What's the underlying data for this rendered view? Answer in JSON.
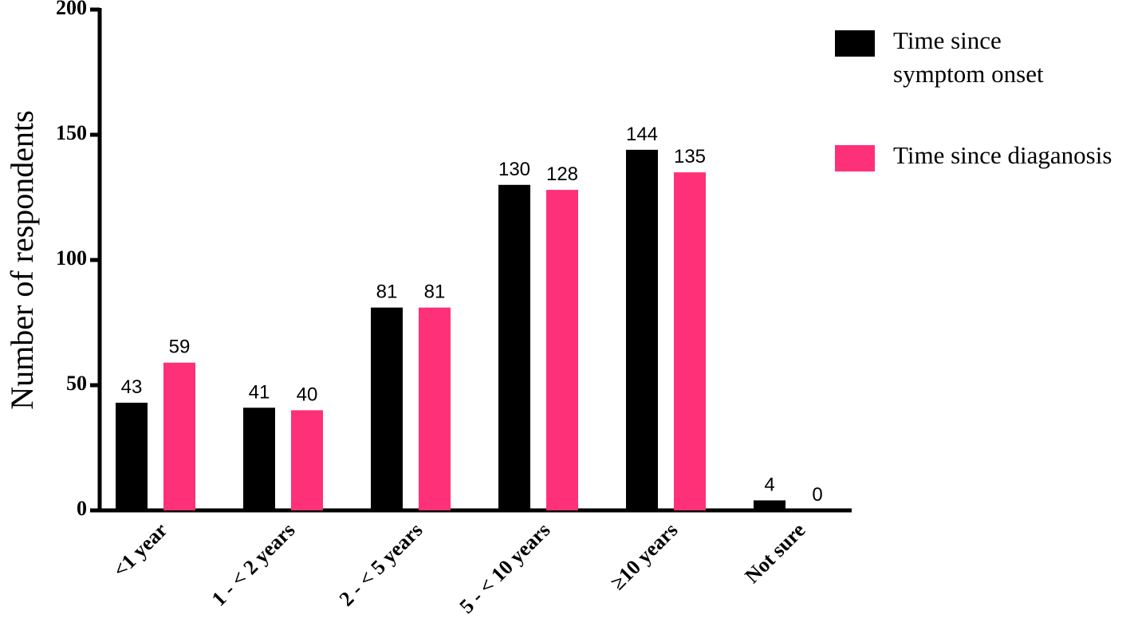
{
  "chart_data": {
    "type": "bar",
    "y_label": "Number of respondents",
    "categories": [
      "<1 year",
      "1 - < 2 years",
      "2 - < 5 years",
      "5 - < 10 years",
      "≥10 years",
      "Not sure"
    ],
    "series": [
      {
        "name": "Time since symptom onset",
        "color": "#000000",
        "values": [
          43,
          41,
          81,
          130,
          144,
          4
        ]
      },
      {
        "name": "Time since diaganosis",
        "color": "#fe3078",
        "values": [
          59,
          40,
          81,
          128,
          135,
          0
        ]
      }
    ],
    "ylim": [
      0,
      200
    ],
    "yticks": [
      0,
      50,
      100,
      150,
      200
    ],
    "legend": "top-right"
  }
}
